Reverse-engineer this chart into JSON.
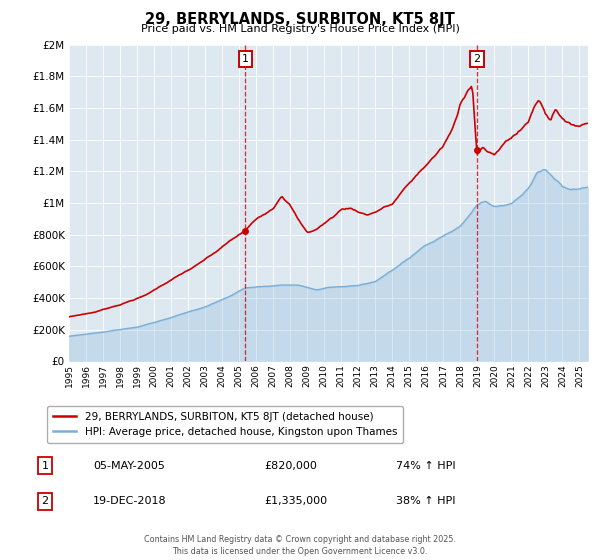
{
  "title": "29, BERRYLANDS, SURBITON, KT5 8JT",
  "subtitle": "Price paid vs. HM Land Registry's House Price Index (HPI)",
  "legend_line1": "29, BERRYLANDS, SURBITON, KT5 8JT (detached house)",
  "legend_line2": "HPI: Average price, detached house, Kingston upon Thames",
  "annotation1_date": "05-MAY-2005",
  "annotation1_price": "£820,000",
  "annotation1_hpi": "74% ↑ HPI",
  "annotation1_year": 2005.35,
  "annotation1_value": 820000,
  "annotation2_date": "19-DEC-2018",
  "annotation2_price": "£1,335,000",
  "annotation2_hpi": "38% ↑ HPI",
  "annotation2_year": 2018.97,
  "annotation2_value": 1335000,
  "footer": "Contains HM Land Registry data © Crown copyright and database right 2025.\nThis data is licensed under the Open Government Licence v3.0.",
  "bg_color": "#dde8f0",
  "red_color": "#cc0000",
  "blue_color": "#7aaed6",
  "ylim_max": 2000000,
  "xlim_min": 1995,
  "xlim_max": 2025.5,
  "yticks": [
    0,
    200000,
    400000,
    600000,
    800000,
    1000000,
    1200000,
    1400000,
    1600000,
    1800000,
    2000000
  ]
}
